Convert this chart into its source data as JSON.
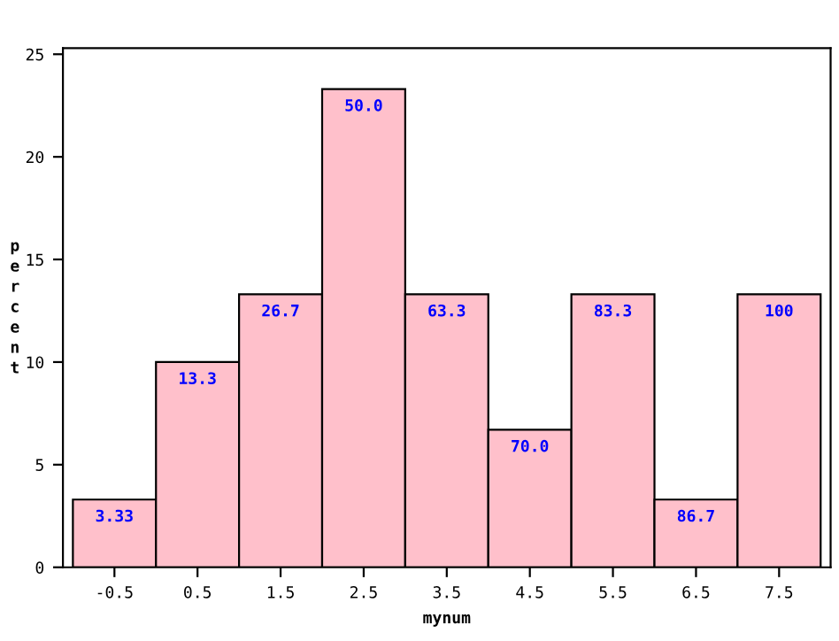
{
  "chart_data": {
    "type": "histogram",
    "xlabel": "mynum",
    "ylabel": "percent",
    "bins": [
      -1,
      0,
      1,
      2,
      3,
      4,
      5,
      6,
      7,
      8
    ],
    "values": [
      3.3,
      10,
      13.3,
      23.3,
      13.3,
      6.7,
      13.3,
      3.3,
      13.3
    ],
    "annotations": [
      {
        "text": "3.33",
        "x": -0.5,
        "y": 3.3
      },
      {
        "text": "13.3",
        "x": 0.5,
        "y": 10
      },
      {
        "text": "26.7",
        "x": 1.5,
        "y": 13.3
      },
      {
        "text": "50.0",
        "x": 2.5,
        "y": 23.3
      },
      {
        "text": "63.3",
        "x": 3.5,
        "y": 13.3
      },
      {
        "text": "70.0",
        "x": 4.5,
        "y": 6.7
      },
      {
        "text": "83.3",
        "x": 5.5,
        "y": 13.3
      },
      {
        "text": "86.7",
        "x": 6.5,
        "y": 3.3
      },
      {
        "text": "100",
        "x": 7.5,
        "y": 13.3
      }
    ],
    "color": "#ffc0cb",
    "xlim": [
      -1.12,
      8.12
    ],
    "xticks": [
      -0.5,
      0.5,
      1.5,
      2.5,
      3.5,
      4.5,
      5.5,
      6.5,
      7.5
    ],
    "ylim": [
      0,
      25.3
    ],
    "yticks": [
      0,
      5,
      10,
      15,
      20,
      25
    ],
    "grid": false,
    "legend": false
  }
}
